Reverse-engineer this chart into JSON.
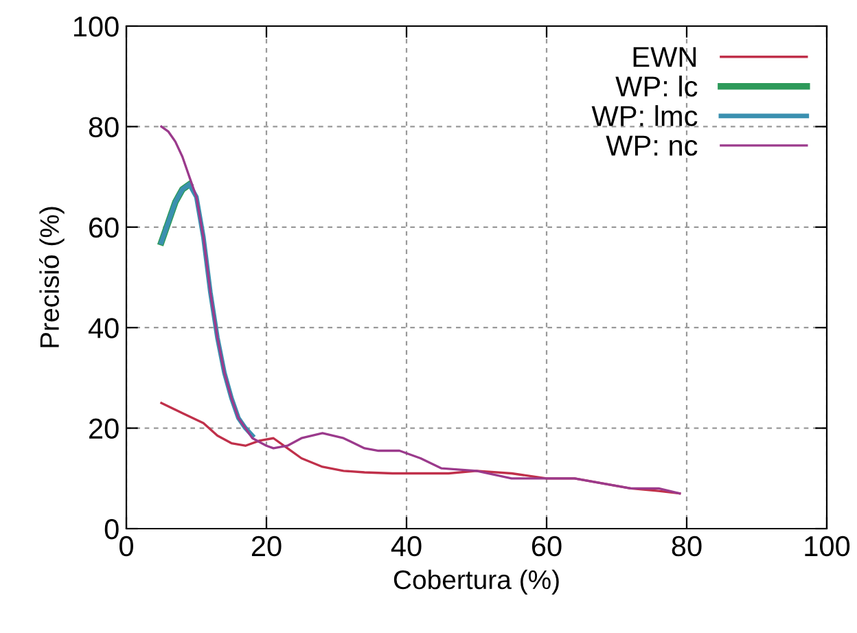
{
  "chart_data": {
    "type": "line",
    "xlabel": "Cobertura (%)",
    "ylabel": "Precisió (%)",
    "xlim": [
      0,
      100
    ],
    "ylim": [
      0,
      100
    ],
    "xticks": [
      0,
      20,
      40,
      60,
      80,
      100
    ],
    "yticks": [
      0,
      20,
      40,
      60,
      80,
      100
    ],
    "grid": true,
    "legend": "top right",
    "marker": "none",
    "line_style": "solid",
    "series": [
      {
        "name": "EWN",
        "color": "#c0304a",
        "x": [
          5,
          8,
          11,
          13,
          15,
          17,
          19,
          21,
          23,
          25,
          28,
          31,
          34,
          38,
          42,
          46,
          50,
          55,
          60,
          64,
          68,
          72,
          76,
          79
        ],
        "values": [
          25,
          23,
          21,
          18.5,
          17,
          16.5,
          17.5,
          18,
          16,
          14,
          12.3,
          11.5,
          11.2,
          11,
          11,
          11,
          11.5,
          11,
          10,
          10,
          9,
          8,
          7.5,
          7
        ]
      },
      {
        "name": "WP: lc",
        "color": "#2e9a5a",
        "x": [
          5,
          6,
          7,
          8,
          9
        ],
        "values": [
          57,
          61,
          65,
          67.5,
          68.5
        ]
      },
      {
        "name": "WP: lmc",
        "color": "#3a90b0",
        "x": [
          5,
          6,
          7,
          8,
          9,
          10,
          11,
          12,
          13,
          14,
          15,
          16,
          17,
          18
        ],
        "values": [
          57,
          61,
          65,
          67.5,
          68.5,
          66,
          58,
          47,
          38,
          31,
          26,
          22,
          20,
          18.5
        ]
      },
      {
        "name": "WP: nc",
        "color": "#9b3a8c",
        "x": [
          5,
          6,
          7,
          8,
          9,
          10,
          11,
          12,
          13,
          14,
          15,
          16,
          17,
          18,
          20,
          21,
          23,
          25,
          28,
          31,
          34,
          36,
          39,
          42,
          45,
          50,
          55,
          60,
          64,
          68,
          72,
          76,
          79
        ],
        "values": [
          80,
          79,
          77,
          74,
          70,
          66,
          58,
          47,
          38,
          31,
          26,
          22,
          20,
          18,
          16.5,
          16,
          16.5,
          18,
          19,
          18,
          16,
          15.5,
          15.5,
          14,
          12,
          11.5,
          10,
          10,
          10,
          9,
          8,
          8,
          7
        ]
      }
    ]
  }
}
